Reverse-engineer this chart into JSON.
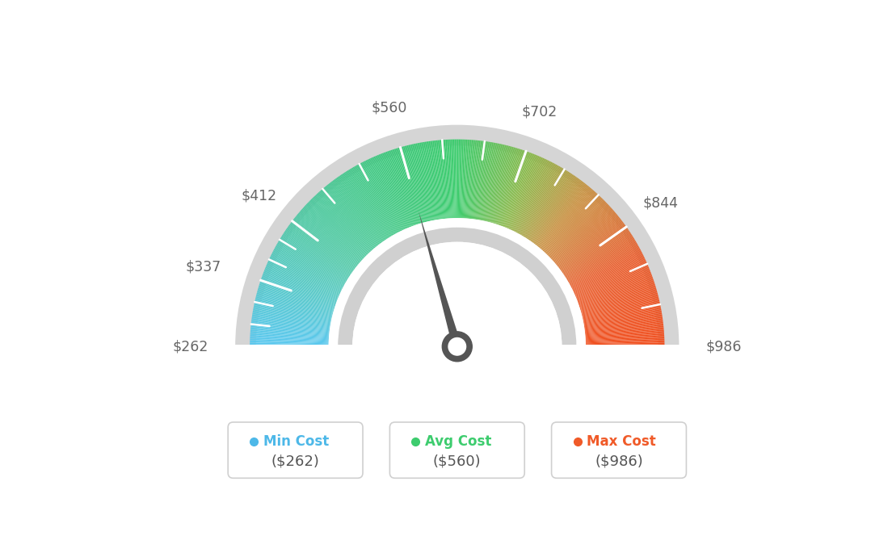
{
  "min_val": 262,
  "avg_val": 560,
  "max_val": 986,
  "needle_value": 560,
  "gauge_min": 262,
  "gauge_max": 986,
  "colors_stops": [
    [
      0.0,
      "#5bc8f0"
    ],
    [
      0.2,
      "#50c8a8"
    ],
    [
      0.4,
      "#3dc87a"
    ],
    [
      0.5,
      "#3dcc6e"
    ],
    [
      0.62,
      "#8ab84a"
    ],
    [
      0.72,
      "#c89040"
    ],
    [
      0.85,
      "#e86030"
    ],
    [
      1.0,
      "#f05020"
    ]
  ],
  "bg_arc_color": "#d5d5d5",
  "inner_arc_color": "#d0d0d0",
  "needle_color": "#555555",
  "tick_labels": [
    "$262",
    "$337",
    "$412",
    "$560",
    "$702",
    "$844",
    "$986"
  ],
  "tick_values": [
    262,
    337,
    412,
    560,
    702,
    844,
    986
  ],
  "background_color": "#ffffff",
  "font_color_labels": "#666666",
  "legend_items": [
    {
      "label": "Min Cost",
      "value": "($262)",
      "color": "#4db8e8"
    },
    {
      "label": "Avg Cost",
      "value": "($560)",
      "color": "#3dcc6e"
    },
    {
      "label": "Max Cost",
      "value": "($986)",
      "color": "#f05a28"
    }
  ]
}
